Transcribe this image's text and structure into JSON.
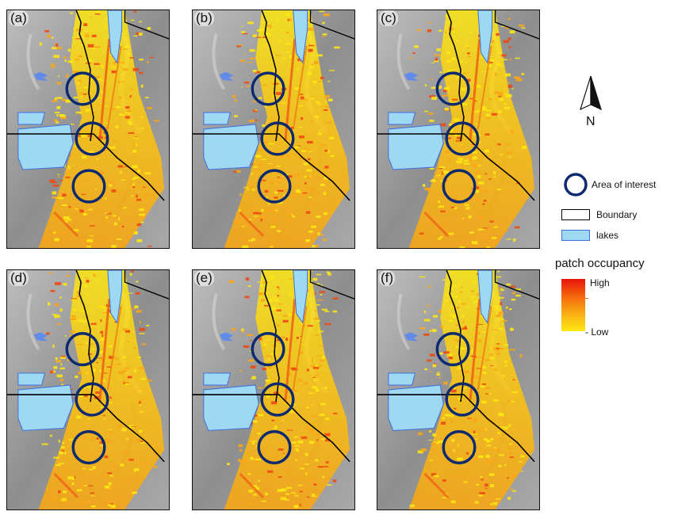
{
  "panels": [
    {
      "label": "(a)"
    },
    {
      "label": "(b)"
    },
    {
      "label": "(c)"
    },
    {
      "label": "(d)"
    },
    {
      "label": "(e)"
    },
    {
      "label": "(f)"
    }
  ],
  "legend": {
    "north_label": "N",
    "items": [
      {
        "label": "Area of interest",
        "symbol": "circle",
        "color": "#0d2a6e"
      },
      {
        "label": "Boundary",
        "symbol": "box",
        "color": "#000000"
      },
      {
        "label": "lakes",
        "symbol": "box",
        "color": "#9fd8f2"
      }
    ],
    "occupancy_title": "patch occupancy",
    "high_label": "High",
    "low_label": "- Low"
  },
  "colors": {
    "terrain": "#9c9c9c",
    "lake": "#9fd8f2",
    "lake_edge": "#3c6fe0",
    "occupancy_low": "#fde712",
    "occupancy_high": "#e8140a",
    "circle": "#0d2a6e"
  }
}
